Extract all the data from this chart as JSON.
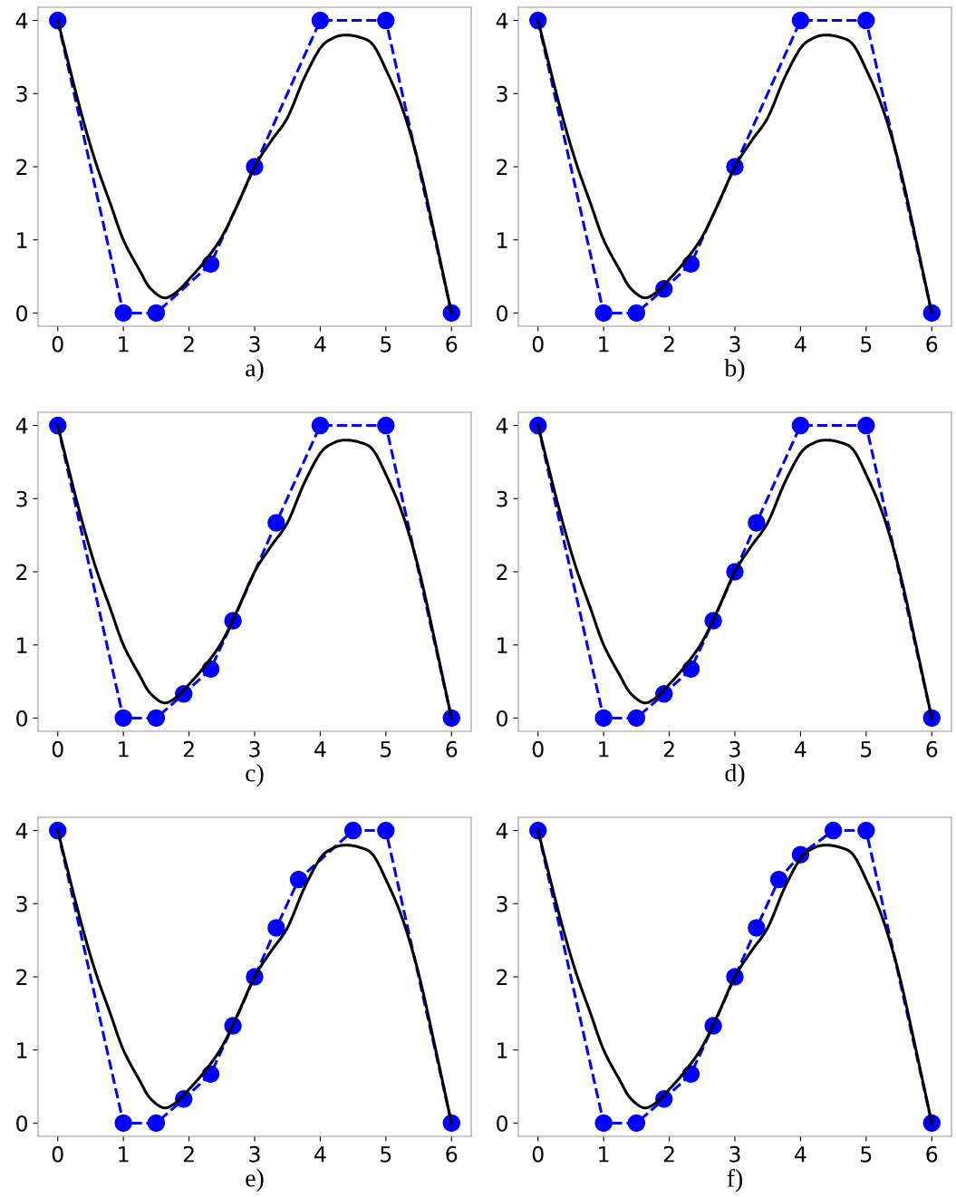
{
  "chart_data": [
    {
      "type": "line",
      "xlabel": "a)",
      "xlim": [
        -0.3,
        6.3
      ],
      "ylim": [
        -0.18,
        4.18
      ],
      "xticks": [
        0,
        1,
        2,
        3,
        4,
        5,
        6
      ],
      "yticks": [
        0,
        1,
        2,
        3,
        4
      ],
      "grid": false,
      "series": [
        {
          "color": "#000000",
          "marker": "none",
          "line_style": "solid",
          "x": [
            0,
            0.14,
            0.28,
            0.43,
            0.6,
            0.8,
            1.0,
            1.25,
            1.4,
            1.61,
            1.8,
            2.0,
            2.25,
            2.5,
            2.75,
            3.0,
            3.25,
            3.5,
            3.75,
            4.0,
            4.2,
            4.38,
            4.6,
            4.8,
            5.0,
            5.25,
            5.5,
            5.75,
            6.0
          ],
          "values": [
            4,
            3.5,
            3.0,
            2.5,
            2.0,
            1.5,
            1.0,
            0.58,
            0.35,
            0.21,
            0.28,
            0.46,
            0.72,
            1.04,
            1.5,
            2.0,
            2.35,
            2.67,
            3.2,
            3.62,
            3.76,
            3.8,
            3.77,
            3.67,
            3.33,
            2.8,
            2.04,
            1.04,
            0
          ]
        },
        {
          "color": "#0000ff",
          "marker": "circle",
          "line_style": "dashed",
          "x": [
            0,
            1,
            1.5,
            2.33,
            3,
            4,
            5,
            6
          ],
          "values": [
            4,
            0,
            0,
            0.67,
            2,
            4,
            4,
            0
          ]
        }
      ]
    },
    {
      "type": "line",
      "xlabel": "b)",
      "xlim": [
        -0.3,
        6.3
      ],
      "ylim": [
        -0.18,
        4.18
      ],
      "xticks": [
        0,
        1,
        2,
        3,
        4,
        5,
        6
      ],
      "yticks": [
        0,
        1,
        2,
        3,
        4
      ],
      "grid": false,
      "series": [
        {
          "color": "#000000",
          "marker": "none",
          "line_style": "solid",
          "x": [
            0,
            0.14,
            0.28,
            0.43,
            0.6,
            0.8,
            1.0,
            1.25,
            1.4,
            1.61,
            1.8,
            2.0,
            2.25,
            2.5,
            2.75,
            3.0,
            3.25,
            3.5,
            3.75,
            4.0,
            4.2,
            4.38,
            4.6,
            4.8,
            5.0,
            5.25,
            5.5,
            5.75,
            6.0
          ],
          "values": [
            4,
            3.5,
            3.0,
            2.5,
            2.0,
            1.5,
            1.0,
            0.58,
            0.35,
            0.21,
            0.28,
            0.46,
            0.72,
            1.04,
            1.5,
            2.0,
            2.35,
            2.67,
            3.2,
            3.62,
            3.76,
            3.8,
            3.77,
            3.67,
            3.33,
            2.8,
            2.04,
            1.04,
            0
          ]
        },
        {
          "color": "#0000ff",
          "marker": "circle",
          "line_style": "dashed",
          "x": [
            0,
            1,
            1.5,
            1.92,
            2.33,
            3,
            4,
            5,
            6
          ],
          "values": [
            4,
            0,
            0,
            0.33,
            0.67,
            2,
            4,
            4,
            0
          ]
        }
      ]
    },
    {
      "type": "line",
      "xlabel": "c)",
      "xlim": [
        -0.3,
        6.3
      ],
      "ylim": [
        -0.18,
        4.18
      ],
      "xticks": [
        0,
        1,
        2,
        3,
        4,
        5,
        6
      ],
      "yticks": [
        0,
        1,
        2,
        3,
        4
      ],
      "grid": false,
      "series": [
        {
          "color": "#000000",
          "marker": "none",
          "line_style": "solid",
          "x": [
            0,
            0.14,
            0.28,
            0.43,
            0.6,
            0.8,
            1.0,
            1.25,
            1.4,
            1.61,
            1.8,
            2.0,
            2.25,
            2.5,
            2.75,
            3.0,
            3.25,
            3.5,
            3.75,
            4.0,
            4.2,
            4.38,
            4.6,
            4.8,
            5.0,
            5.25,
            5.5,
            5.75,
            6.0
          ],
          "values": [
            4,
            3.5,
            3.0,
            2.5,
            2.0,
            1.5,
            1.0,
            0.58,
            0.35,
            0.21,
            0.28,
            0.46,
            0.72,
            1.04,
            1.5,
            2.0,
            2.35,
            2.67,
            3.2,
            3.62,
            3.76,
            3.8,
            3.77,
            3.67,
            3.33,
            2.8,
            2.04,
            1.04,
            0
          ]
        },
        {
          "color": "#0000ff",
          "marker": "circle",
          "line_style": "dashed",
          "x": [
            0,
            1,
            1.5,
            1.92,
            2.33,
            2.67,
            3.33,
            4,
            5,
            6
          ],
          "values": [
            4,
            0,
            0,
            0.33,
            0.67,
            1.33,
            2.67,
            4,
            4,
            0
          ]
        }
      ]
    },
    {
      "type": "line",
      "xlabel": "d)",
      "xlim": [
        -0.3,
        6.3
      ],
      "ylim": [
        -0.18,
        4.18
      ],
      "xticks": [
        0,
        1,
        2,
        3,
        4,
        5,
        6
      ],
      "yticks": [
        0,
        1,
        2,
        3,
        4
      ],
      "grid": false,
      "series": [
        {
          "color": "#000000",
          "marker": "none",
          "line_style": "solid",
          "x": [
            0,
            0.14,
            0.28,
            0.43,
            0.6,
            0.8,
            1.0,
            1.25,
            1.4,
            1.61,
            1.8,
            2.0,
            2.25,
            2.5,
            2.75,
            3.0,
            3.25,
            3.5,
            3.75,
            4.0,
            4.2,
            4.38,
            4.6,
            4.8,
            5.0,
            5.25,
            5.5,
            5.75,
            6.0
          ],
          "values": [
            4,
            3.5,
            3.0,
            2.5,
            2.0,
            1.5,
            1.0,
            0.58,
            0.35,
            0.21,
            0.28,
            0.46,
            0.72,
            1.04,
            1.5,
            2.0,
            2.35,
            2.67,
            3.2,
            3.62,
            3.76,
            3.8,
            3.77,
            3.67,
            3.33,
            2.8,
            2.04,
            1.04,
            0
          ]
        },
        {
          "color": "#0000ff",
          "marker": "circle",
          "line_style": "dashed",
          "x": [
            0,
            1,
            1.5,
            1.92,
            2.33,
            2.67,
            3,
            3.33,
            4,
            5,
            6
          ],
          "values": [
            4,
            0,
            0,
            0.33,
            0.67,
            1.33,
            2,
            2.67,
            4,
            4,
            0
          ]
        }
      ]
    },
    {
      "type": "line",
      "xlabel": "e)",
      "xlim": [
        -0.3,
        6.3
      ],
      "ylim": [
        -0.18,
        4.18
      ],
      "xticks": [
        0,
        1,
        2,
        3,
        4,
        5,
        6
      ],
      "yticks": [
        0,
        1,
        2,
        3,
        4
      ],
      "grid": false,
      "series": [
        {
          "color": "#000000",
          "marker": "none",
          "line_style": "solid",
          "x": [
            0,
            0.14,
            0.28,
            0.43,
            0.6,
            0.8,
            1.0,
            1.25,
            1.4,
            1.61,
            1.8,
            2.0,
            2.25,
            2.5,
            2.75,
            3.0,
            3.25,
            3.5,
            3.75,
            4.0,
            4.2,
            4.38,
            4.6,
            4.8,
            5.0,
            5.25,
            5.5,
            5.75,
            6.0
          ],
          "values": [
            4,
            3.5,
            3.0,
            2.5,
            2.0,
            1.5,
            1.0,
            0.58,
            0.35,
            0.21,
            0.28,
            0.46,
            0.72,
            1.04,
            1.5,
            2.0,
            2.35,
            2.67,
            3.2,
            3.62,
            3.76,
            3.8,
            3.77,
            3.67,
            3.33,
            2.8,
            2.04,
            1.04,
            0
          ]
        },
        {
          "color": "#0000ff",
          "marker": "circle",
          "line_style": "dashed",
          "x": [
            0,
            1,
            1.5,
            1.92,
            2.33,
            2.67,
            3,
            3.33,
            3.67,
            4.5,
            5,
            6
          ],
          "values": [
            4,
            0,
            0,
            0.33,
            0.67,
            1.33,
            2,
            2.67,
            3.33,
            4,
            4,
            0
          ]
        }
      ]
    },
    {
      "type": "line",
      "xlabel": "f)",
      "xlim": [
        -0.3,
        6.3
      ],
      "ylim": [
        -0.18,
        4.18
      ],
      "xticks": [
        0,
        1,
        2,
        3,
        4,
        5,
        6
      ],
      "yticks": [
        0,
        1,
        2,
        3,
        4
      ],
      "grid": false,
      "series": [
        {
          "color": "#000000",
          "marker": "none",
          "line_style": "solid",
          "x": [
            0,
            0.14,
            0.28,
            0.43,
            0.6,
            0.8,
            1.0,
            1.25,
            1.4,
            1.61,
            1.8,
            2.0,
            2.25,
            2.5,
            2.75,
            3.0,
            3.25,
            3.5,
            3.75,
            4.0,
            4.2,
            4.38,
            4.6,
            4.8,
            5.0,
            5.25,
            5.5,
            5.75,
            6.0
          ],
          "values": [
            4,
            3.5,
            3.0,
            2.5,
            2.0,
            1.5,
            1.0,
            0.58,
            0.35,
            0.21,
            0.28,
            0.46,
            0.72,
            1.04,
            1.5,
            2.0,
            2.35,
            2.67,
            3.2,
            3.62,
            3.76,
            3.8,
            3.77,
            3.67,
            3.33,
            2.8,
            2.04,
            1.04,
            0
          ]
        },
        {
          "color": "#0000ff",
          "marker": "circle",
          "line_style": "dashed",
          "x": [
            0,
            1,
            1.5,
            1.92,
            2.33,
            2.67,
            3,
            3.33,
            3.67,
            4,
            4.5,
            5,
            6
          ],
          "values": [
            4,
            0,
            0,
            0.33,
            0.67,
            1.33,
            2,
            2.67,
            3.33,
            3.67,
            4,
            4,
            0
          ]
        }
      ]
    }
  ]
}
